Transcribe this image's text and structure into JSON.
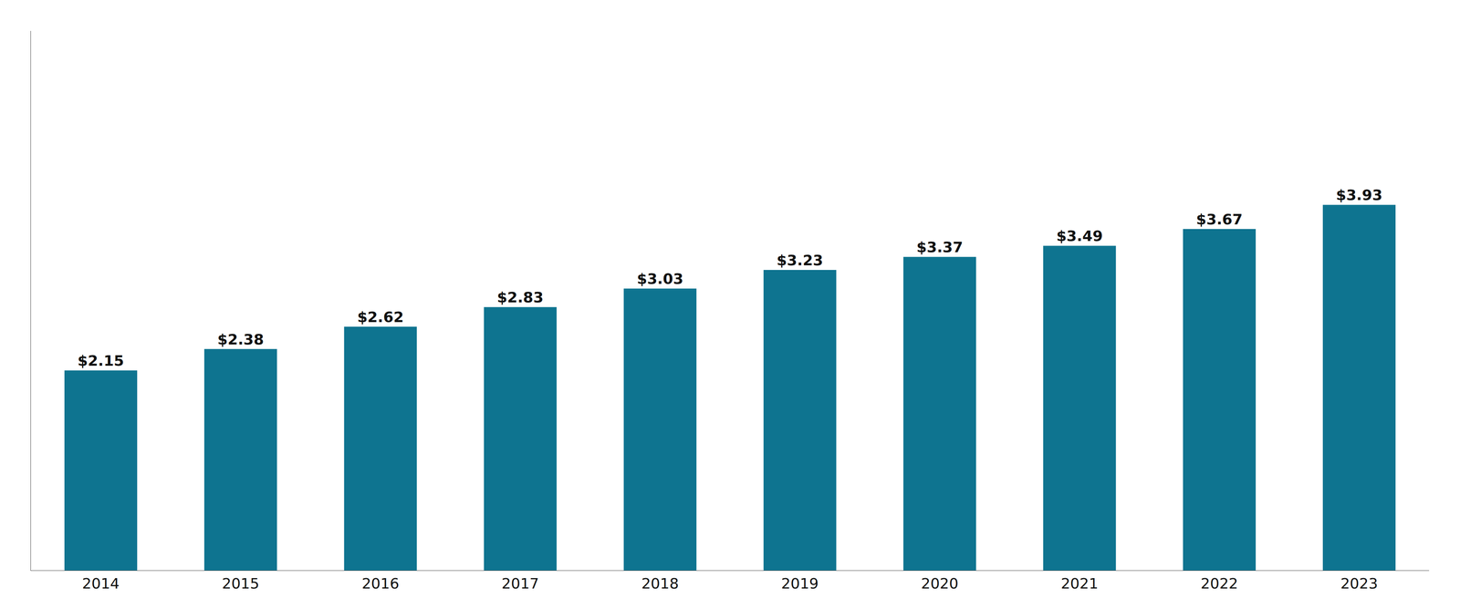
{
  "chart_data": {
    "type": "bar",
    "categories": [
      "2014",
      "2015",
      "2016",
      "2017",
      "2018",
      "2019",
      "2020",
      "2021",
      "2022",
      "2023"
    ],
    "values": [
      2.15,
      2.38,
      2.62,
      2.83,
      3.03,
      3.23,
      3.37,
      3.49,
      3.67,
      3.93
    ],
    "value_labels": [
      "$2.15",
      "$2.38",
      "$2.62",
      "$2.83",
      "$3.03",
      "$3.23",
      "$3.37",
      "$3.49",
      "$3.67",
      "$3.93"
    ],
    "data_labels": true,
    "color": "#0e7490",
    "ylim": [
      0,
      5.8
    ],
    "tick_labels": "x",
    "grid": false
  }
}
